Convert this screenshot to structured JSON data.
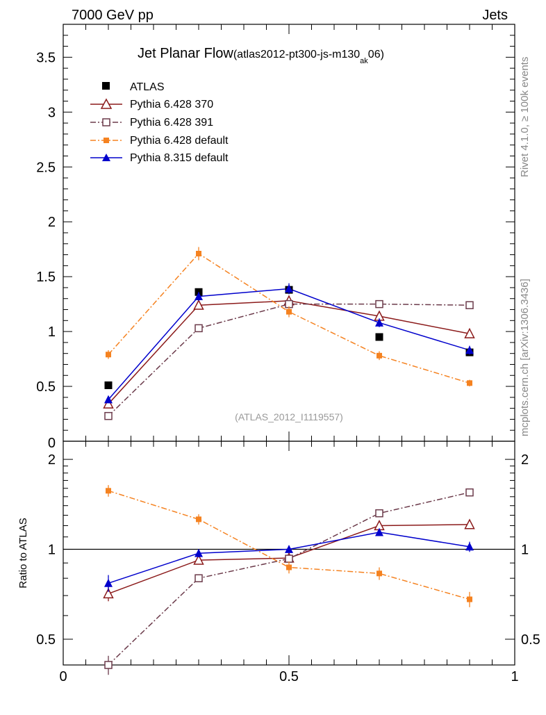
{
  "header": {
    "left": "7000 GeV pp",
    "right": "Jets"
  },
  "side_labels": {
    "top": "Rivet 4.1.0, ≥ 100k events",
    "bottom": "mcplots.cern.ch [arXiv:1306.3436]"
  },
  "title": {
    "main": "Jet Planar Flow",
    "paren_open": "(atlas2012-pt300-js-m130",
    "sub": "ak",
    "paren_close": "06)"
  },
  "watermark": "(ATLAS_2012_I1119557)",
  "colors": {
    "atlas": "#000000",
    "p370": "#8b1a1a",
    "p391": "#6b3a4a",
    "p6def": "#f58220",
    "p8def": "#0000cc"
  },
  "chart_data": [
    {
      "type": "line",
      "title": "Jet Planar Flow",
      "xlim": [
        0,
        1
      ],
      "ylim": [
        0,
        3.8
      ],
      "yticks": [
        0.5,
        1,
        1.5,
        2,
        2.5,
        3,
        3.5
      ],
      "ytick_labels": [
        "0.5",
        "1",
        "1.5",
        "2",
        "2.5",
        "3",
        "3.5"
      ],
      "partial_tick_label": "0",
      "x": [
        0.1,
        0.3,
        0.5,
        0.7,
        0.9
      ],
      "series": [
        {
          "key": "atlas",
          "name": "ATLAS",
          "values": [
            0.51,
            1.36,
            1.38,
            0.95,
            0.81
          ],
          "errors": [
            0.02,
            0.02,
            0.02,
            0.02,
            0.02
          ]
        },
        {
          "key": "p370",
          "name": "Pythia 6.428 370",
          "values": [
            0.34,
            1.24,
            1.28,
            1.14,
            0.98
          ],
          "errors": [
            0.03,
            0.03,
            0.03,
            0.03,
            0.03
          ]
        },
        {
          "key": "p391",
          "name": "Pythia 6.428 391",
          "values": [
            0.23,
            1.03,
            1.25,
            1.25,
            1.24
          ],
          "errors": [
            0.02,
            0.03,
            0.03,
            0.03,
            0.03
          ]
        },
        {
          "key": "p6def",
          "name": "Pythia 6.428 default",
          "values": [
            0.79,
            1.71,
            1.18,
            0.78,
            0.53
          ],
          "errors": [
            0.04,
            0.06,
            0.05,
            0.04,
            0.03
          ]
        },
        {
          "key": "p8def",
          "name": "Pythia 8.315 default",
          "values": [
            0.38,
            1.32,
            1.39,
            1.08,
            0.83
          ],
          "errors": [
            0.03,
            0.04,
            0.05,
            0.04,
            0.04
          ]
        }
      ]
    },
    {
      "type": "line",
      "ylabel": "Ratio to ATLAS",
      "xlim": [
        0,
        1
      ],
      "ylim": [
        0.41,
        2.3
      ],
      "log_y": true,
      "reference_line": 1,
      "yticks": [
        0.5,
        1,
        2
      ],
      "ytick_labels": [
        "0.5",
        "1",
        "2"
      ],
      "xticks": [
        0,
        0.5,
        1
      ],
      "xtick_labels": [
        "0",
        "0.5",
        "1"
      ],
      "x": [
        0.1,
        0.3,
        0.5,
        0.7,
        0.9
      ],
      "series": [
        {
          "key": "p370",
          "name": "Pythia 6.428 370",
          "values": [
            0.71,
            0.92,
            0.935,
            1.2,
            1.21
          ],
          "errors": [
            0.04,
            0.02,
            0.02,
            0.03,
            0.03
          ]
        },
        {
          "key": "p391",
          "name": "Pythia 6.428 391",
          "values": [
            0.41,
            0.8,
            0.93,
            1.32,
            1.55
          ],
          "errors": [
            0.03,
            0.02,
            0.02,
            0.03,
            0.03
          ]
        },
        {
          "key": "p6def",
          "name": "Pythia 6.428 default",
          "values": [
            1.57,
            1.26,
            0.87,
            0.83,
            0.68
          ],
          "errors": [
            0.07,
            0.05,
            0.04,
            0.04,
            0.04
          ]
        },
        {
          "key": "p8def",
          "name": "Pythia 8.315 default",
          "values": [
            0.77,
            0.97,
            1.0,
            1.14,
            1.02
          ],
          "errors": [
            0.05,
            0.03,
            0.03,
            0.03,
            0.04
          ]
        }
      ]
    }
  ]
}
